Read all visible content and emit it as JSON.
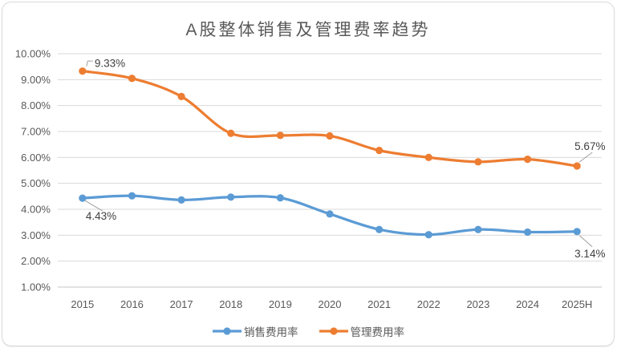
{
  "chart_data": {
    "type": "line",
    "title": "A股整体销售及管理费率趋势",
    "categories": [
      "2015",
      "2016",
      "2017",
      "2018",
      "2019",
      "2020",
      "2021",
      "2022",
      "2023",
      "2024",
      "2025H"
    ],
    "series": [
      {
        "name": "销售费用率",
        "color": "#5B9BD5",
        "values": [
          4.43,
          4.52,
          4.36,
          4.47,
          4.44,
          3.82,
          3.22,
          3.02,
          3.22,
          3.12,
          3.14
        ]
      },
      {
        "name": "管理费用率",
        "color": "#ED7D31",
        "values": [
          9.33,
          9.05,
          8.35,
          6.93,
          6.85,
          6.83,
          6.27,
          6.0,
          5.83,
          5.93,
          5.67
        ]
      }
    ],
    "point_labels": [
      {
        "series": 1,
        "index": 0,
        "text": "9.33%",
        "placement": "elbow-above"
      },
      {
        "series": 1,
        "index": 10,
        "text": "5.67%",
        "placement": "above"
      },
      {
        "series": 0,
        "index": 0,
        "text": "4.43%",
        "placement": "below-right"
      },
      {
        "series": 0,
        "index": 10,
        "text": "3.14%",
        "placement": "below"
      }
    ],
    "y_axis": {
      "min": 1,
      "max": 10,
      "step": 1,
      "tick_labels": [
        "10.00%",
        "9.00%",
        "8.00%",
        "7.00%",
        "6.00%",
        "5.00%",
        "4.00%",
        "3.00%",
        "2.00%",
        "1.00%"
      ]
    },
    "grid": true,
    "smooth_lines": true,
    "legend_position": "bottom",
    "colors": {
      "axis_text": "#595959",
      "gridline": "#D9D9D9",
      "axis_line": "#C6C6C6",
      "data_label": "#404040",
      "leader_line": "#9E9E9E",
      "frame_border": "#D9D9D9",
      "background": "#FFFFFF"
    }
  }
}
